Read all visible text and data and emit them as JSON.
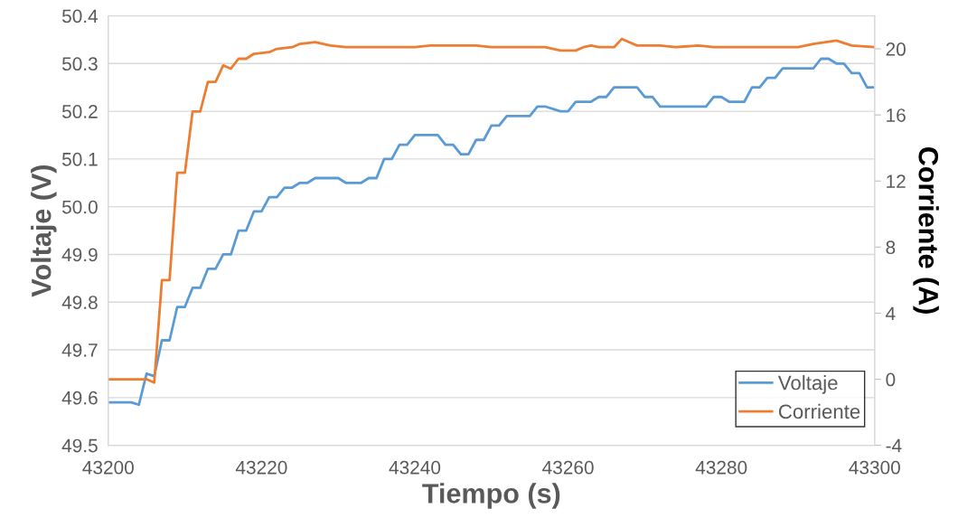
{
  "chart_data": {
    "type": "line",
    "xlabel": "Tiempo (s)",
    "ylabel": "Voltaje (V)",
    "y2label": "Corriente (A)",
    "xlim": [
      43200,
      43300
    ],
    "xticks": [
      43200,
      43220,
      43240,
      43260,
      43280,
      43300
    ],
    "ylim": [
      49.5,
      50.4
    ],
    "yticks": [
      {
        "value": 49.5,
        "label": "49.5"
      },
      {
        "value": 49.6,
        "label": "49.6"
      },
      {
        "value": 49.7,
        "label": "49.7"
      },
      {
        "value": 49.8,
        "label": "49.8"
      },
      {
        "value": 49.9,
        "label": "49.9"
      },
      {
        "value": 50.0,
        "label": "50.0"
      },
      {
        "value": 50.1,
        "label": "50.1"
      },
      {
        "value": 50.2,
        "label": "50.2"
      },
      {
        "value": 50.3,
        "label": "50.3"
      },
      {
        "value": 50.4,
        "label": "50.4"
      }
    ],
    "y2lim": [
      -4,
      22
    ],
    "y2ticks": [
      -4,
      0,
      4,
      8,
      12,
      16,
      20
    ],
    "grid": "y",
    "legend": "bottom right",
    "marker": "none",
    "line_style": "solid",
    "series": [
      {
        "name": "Voltaje",
        "color": "#5b9bd5",
        "x": [
          43200,
          43203,
          43204,
          43205,
          43206,
          43207,
          43208,
          43209,
          43210,
          43211,
          43212,
          43213,
          43214,
          43215,
          43216,
          43217,
          43218,
          43219,
          43220,
          43221,
          43222,
          43223,
          43224,
          43225,
          43226,
          43227,
          43230,
          43231,
          43233,
          43234,
          43235,
          43236,
          43237,
          43238,
          43239,
          43240,
          43243,
          43244,
          43245,
          43246,
          43247,
          43248,
          43249,
          43250,
          43251,
          43252,
          43255,
          43256,
          43257,
          43259,
          43260,
          43261,
          43263,
          43264,
          43265,
          43266,
          43269,
          43270,
          43271,
          43272,
          43278,
          43279,
          43280,
          43281,
          43283,
          43284,
          43285,
          43286,
          43287,
          43288,
          43292,
          43293,
          43294,
          43295,
          43296,
          43297,
          43298,
          43299,
          43300
        ],
        "values": [
          49.59,
          49.59,
          49.585,
          49.65,
          49.645,
          49.72,
          49.72,
          49.79,
          49.79,
          49.83,
          49.83,
          49.87,
          49.87,
          49.9,
          49.9,
          49.95,
          49.95,
          49.99,
          49.99,
          50.02,
          50.02,
          50.04,
          50.04,
          50.05,
          50.05,
          50.06,
          50.06,
          50.05,
          50.05,
          50.06,
          50.06,
          50.1,
          50.1,
          50.13,
          50.13,
          50.15,
          50.15,
          50.13,
          50.13,
          50.11,
          50.11,
          50.14,
          50.14,
          50.17,
          50.17,
          50.19,
          50.19,
          50.21,
          50.21,
          50.2,
          50.2,
          50.22,
          50.22,
          50.23,
          50.23,
          50.25,
          50.25,
          50.23,
          50.23,
          50.21,
          50.21,
          50.23,
          50.23,
          50.22,
          50.22,
          50.25,
          50.25,
          50.27,
          50.27,
          50.29,
          50.29,
          50.31,
          50.31,
          50.3,
          50.3,
          50.28,
          50.28,
          50.25,
          50.25
        ]
      },
      {
        "name": "Corriente",
        "color": "#ed7d31",
        "axis": "y2",
        "x": [
          43200,
          43205,
          43206,
          43207,
          43208,
          43209,
          43210,
          43211,
          43212,
          43213,
          43214,
          43215,
          43216,
          43217,
          43218,
          43219,
          43221,
          43222,
          43224,
          43225,
          43227,
          43229,
          43231,
          43240,
          43242,
          43248,
          43250,
          43257,
          43259,
          43261,
          43262,
          43263,
          43264,
          43266,
          43267,
          43268,
          43269,
          43272,
          43274,
          43277,
          43279,
          43290,
          43292,
          43295,
          43297,
          43300
        ],
        "values": [
          0,
          0,
          -0.2,
          6,
          6,
          12.5,
          12.5,
          16.2,
          16.2,
          18,
          18,
          19,
          18.8,
          19.4,
          19.4,
          19.7,
          19.8,
          20.0,
          20.1,
          20.3,
          20.4,
          20.2,
          20.1,
          20.1,
          20.2,
          20.2,
          20.1,
          20.1,
          19.9,
          19.9,
          20.1,
          20.2,
          20.1,
          20.1,
          20.6,
          20.4,
          20.2,
          20.2,
          20.1,
          20.2,
          20.1,
          20.1,
          20.3,
          20.5,
          20.2,
          20.1
        ]
      }
    ]
  }
}
